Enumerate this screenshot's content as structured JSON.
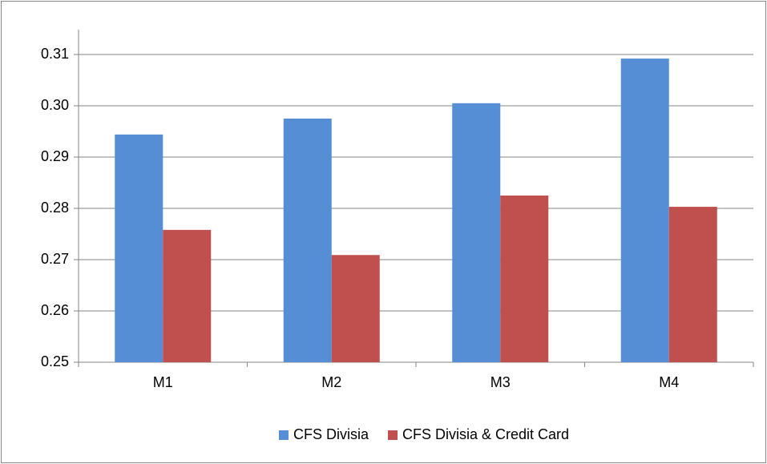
{
  "chart_data": {
    "type": "bar",
    "categories": [
      "M1",
      "M2",
      "M3",
      "M4"
    ],
    "series": [
      {
        "name": "CFS Divisia",
        "color": "#558ed5",
        "values": [
          0.2944,
          0.2975,
          0.3005,
          0.3092
        ]
      },
      {
        "name": "CFS Divisia & Credit Card",
        "color": "#c0504d",
        "values": [
          0.2758,
          0.2709,
          0.2825,
          0.2803
        ]
      }
    ],
    "ylim": [
      0.25,
      0.31
    ],
    "yticks": [
      0.25,
      0.26,
      0.27,
      0.28,
      0.29,
      {
        "value": 0.3,
        "label": "0.30"
      },
      0.31
    ],
    "grid": true,
    "legend": "bottom"
  }
}
